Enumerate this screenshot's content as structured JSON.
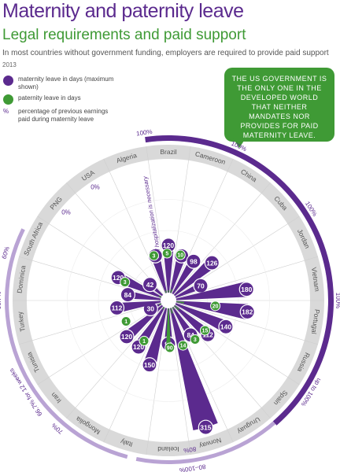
{
  "title": "Maternity and paternity leave",
  "subtitle": "Legal requirements and paid support",
  "tagline": "In most countries without government funding, employers are required to provide paid support",
  "year": "2013",
  "legend": {
    "maternity": "maternity leave in days (maximum shown)",
    "paternity": "paternity leave in days",
    "percent_symbol": "%",
    "percent": "percentage of previous earnings paid during maternity leave"
  },
  "callout": "The US government is the only one in the developed world that neither mandates nor provides for paid maternity leave.",
  "colors": {
    "maternity": "#5b2a8e",
    "paternity": "#3f9a35",
    "ring": "#d9d9d9",
    "band": "#b9a3d4",
    "bandDark": "#5b2a8e"
  },
  "chart_data": {
    "type": "radial-bar",
    "countries": [
      {
        "name": "Algeria",
        "maternity": 98,
        "paternity": 3
      },
      {
        "name": "Brazil",
        "maternity": 120,
        "paternity": 5
      },
      {
        "name": "Cameroon",
        "maternity": 98,
        "paternity": 10
      },
      {
        "name": "China",
        "maternity": 98,
        "paternity": null
      },
      {
        "name": "Cuba",
        "maternity": 126,
        "paternity": null
      },
      {
        "name": "Jordan",
        "maternity": 70,
        "paternity": null
      },
      {
        "name": "Vietnam",
        "maternity": 180,
        "paternity": null
      },
      {
        "name": "Portugal",
        "maternity": 182,
        "paternity": 20
      },
      {
        "name": "Russia",
        "maternity": 140,
        "paternity": null
      },
      {
        "name": "Spain",
        "maternity": 112,
        "paternity": 15
      },
      {
        "name": "Uruguay",
        "maternity": 84,
        "paternity": 3
      },
      {
        "name": "Norway",
        "maternity": 315,
        "paternity": 14
      },
      {
        "name": "Iceland",
        "maternity": 90,
        "paternity": 90
      },
      {
        "name": "Italy",
        "maternity": 150,
        "paternity": null
      },
      {
        "name": "Mongolia",
        "maternity": 120,
        "paternity": 1
      },
      {
        "name": "Iran",
        "maternity": 120,
        "paternity": null
      },
      {
        "name": "Tunisia",
        "maternity": 30,
        "paternity": 1
      },
      {
        "name": "Turkey",
        "maternity": 112,
        "paternity": null
      },
      {
        "name": "Dominica",
        "maternity": 84,
        "paternity": null
      },
      {
        "name": "South Africa",
        "maternity": 120,
        "paternity": 3
      },
      {
        "name": "PNG",
        "maternity": 42,
        "paternity": null
      },
      {
        "name": "USA",
        "maternity": null,
        "paternity": null
      }
    ],
    "percent_labels": [
      {
        "text": "100%",
        "between": [
          "Algeria",
          "Brazil"
        ]
      },
      {
        "text": "100%",
        "between": [
          "Cameroon",
          "China"
        ]
      },
      {
        "text": "100%",
        "between": [
          "Cuba",
          "Jordan"
        ]
      },
      {
        "text": "100%",
        "between": [
          "Vietnam",
          "Portugal"
        ]
      },
      {
        "text": "up to 100%",
        "between": [
          "Russia",
          "Spain"
        ]
      },
      {
        "text": "80–100%",
        "between": [
          "Norway",
          "Iceland"
        ]
      },
      {
        "text": "80%",
        "between": [
          "Norway",
          "Iceland"
        ]
      },
      {
        "text": "70%",
        "between": [
          "Mongolia",
          "Italy"
        ]
      },
      {
        "text": "66.7% for 12 weeks",
        "between": [
          "Iran",
          "Mongolia"
        ]
      },
      {
        "text": "66.7%",
        "between": [
          "Turkey",
          "Tunisia"
        ]
      },
      {
        "text": "60%",
        "between": [
          "Dominica",
          "South Africa"
        ]
      },
      {
        "text": "0%",
        "between": [
          "PNG",
          "USA"
        ]
      },
      {
        "text": "0%",
        "between": [
          "USA",
          "Algeria"
        ]
      }
    ],
    "annotation": "if hospitalization is necessary",
    "max_days": 315
  }
}
